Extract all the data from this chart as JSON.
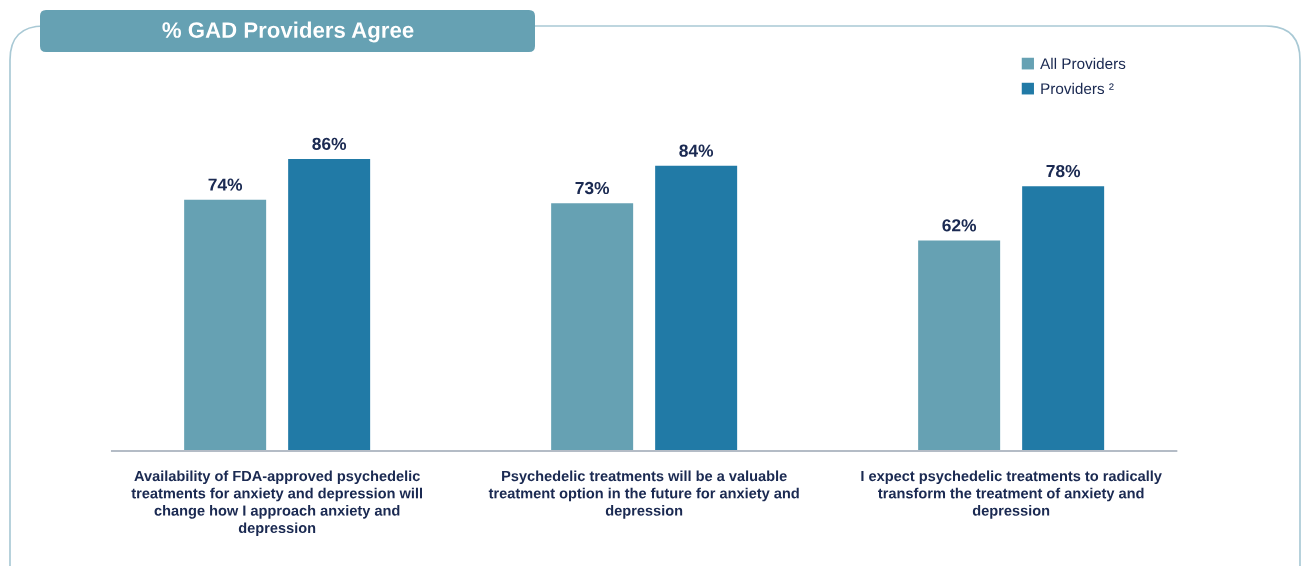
{
  "chart_data": {
    "type": "bar",
    "title": "% GAD Providers Agree",
    "categories": [
      "Availability of FDA-approved psychedelic\ntreatments for anxiety and depression will\nchange how I approach anxiety and\ndepression",
      "Psychedelic treatments will be a valuable\ntreatment option in the future for anxiety and\ndepression",
      "I expect psychedelic treatments to radically\ntransform the treatment of anxiety and\ndepression"
    ],
    "series": [
      {
        "name": "All Providers",
        "color": "#66a1b3",
        "values": [
          74,
          73,
          62
        ],
        "value_labels": [
          "74%",
          "73%",
          "62%"
        ]
      },
      {
        "name": "Providers ²",
        "color": "#217aa6",
        "values": [
          86,
          84,
          78
        ],
        "value_labels": [
          "86%",
          "84%",
          "78%"
        ]
      }
    ],
    "tick_labels": "x",
    "legend": "top right"
  }
}
